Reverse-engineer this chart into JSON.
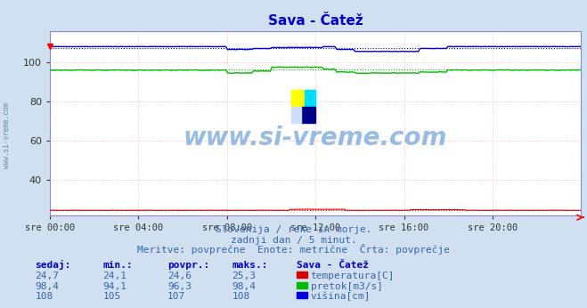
{
  "title": "Sava - Čatež",
  "bg_color": "#d0e0f0",
  "plot_bg_color": "#ffffff",
  "grid_color": "#ffb0b0",
  "grid_color_minor": "#e8e8ff",
  "xlabel_times": [
    "sre 00:00",
    "sre 04:00",
    "sre 08:00",
    "sre 12:00",
    "sre 16:00",
    "sre 20:00"
  ],
  "ylim": [
    22,
    116
  ],
  "yticks": [
    40,
    60,
    80,
    100
  ],
  "n_points": 288,
  "temp_avg": 24.6,
  "pretok_avg": 96.3,
  "visina_avg": 107.0,
  "temp_color": "#dd0000",
  "pretok_color": "#00bb00",
  "visina_color": "#0000dd",
  "watermark_text": "www.si-vreme.com",
  "watermark_color": "#4488cc",
  "sub_text1": "Slovenija / reke in morje.",
  "sub_text2": "zadnji dan / 5 minut.",
  "sub_text3": "Meritve: povprečne  Enote: metrične  Črta: povprečje",
  "table_header": [
    "sedaj:",
    "min.:",
    "povpr.:",
    "maks.:",
    "Sava - Čatež"
  ],
  "table_rows": [
    [
      "24,7",
      "24,1",
      "24,6",
      "25,3",
      "temperatura[C]",
      "#dd0000"
    ],
    [
      "98,4",
      "94,1",
      "96,3",
      "98,4",
      "pretok[m3/s]",
      "#00bb00"
    ],
    [
      "108",
      "105",
      "107",
      "108",
      "višina[cm]",
      "#0000dd"
    ]
  ],
  "left_label": "www.si-vreme.com"
}
